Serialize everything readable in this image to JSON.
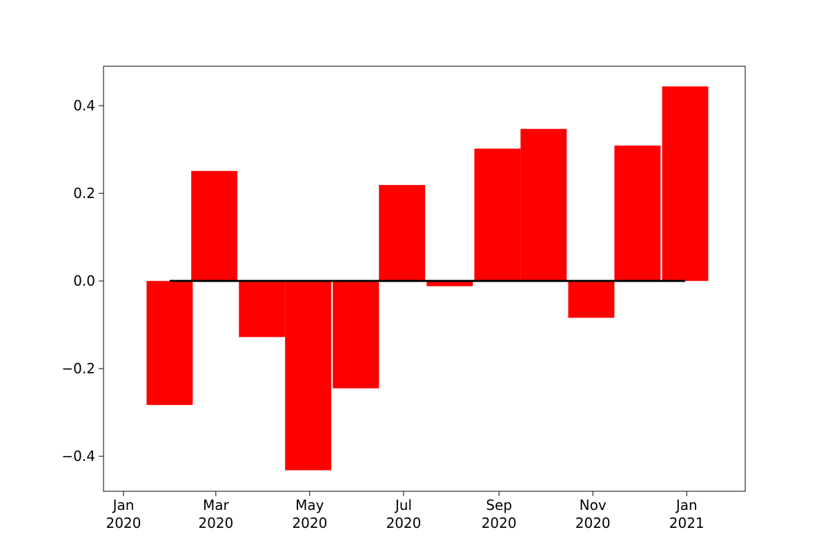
{
  "chart_data": {
    "type": "bar",
    "x_axis": {
      "kind": "date",
      "range": [
        "2019-12-19",
        "2021-02-08"
      ],
      "ticks": [
        {
          "date": "2020-01-01",
          "label_line1": "Jan",
          "label_line2": "2020"
        },
        {
          "date": "2020-03-01",
          "label_line1": "Mar",
          "label_line2": "2020"
        },
        {
          "date": "2020-05-01",
          "label_line1": "May",
          "label_line2": "2020"
        },
        {
          "date": "2020-07-01",
          "label_line1": "Jul",
          "label_line2": "2020"
        },
        {
          "date": "2020-09-01",
          "label_line1": "Sep",
          "label_line2": "2020"
        },
        {
          "date": "2020-11-01",
          "label_line1": "Nov",
          "label_line2": "2020"
        },
        {
          "date": "2021-01-01",
          "label_line1": "Jan",
          "label_line2": "2021"
        }
      ]
    },
    "y_axis": {
      "range": [
        -0.48,
        0.49
      ],
      "ticks": [
        {
          "value": 0.4,
          "label": "0.4"
        },
        {
          "value": 0.2,
          "label": "0.2"
        },
        {
          "value": 0.0,
          "label": "0.0"
        },
        {
          "value": -0.2,
          "label": "−0.2"
        },
        {
          "value": -0.4,
          "label": "−0.4"
        }
      ]
    },
    "bar_color": "#ff0000",
    "bars": [
      {
        "x": "2020-01-31",
        "value": -0.283
      },
      {
        "x": "2020-02-29",
        "value": 0.251
      },
      {
        "x": "2020-03-31",
        "value": -0.128
      },
      {
        "x": "2020-04-30",
        "value": -0.432
      },
      {
        "x": "2020-05-31",
        "value": -0.245
      },
      {
        "x": "2020-06-30",
        "value": 0.219
      },
      {
        "x": "2020-07-31",
        "value": -0.012
      },
      {
        "x": "2020-08-31",
        "value": 0.302
      },
      {
        "x": "2020-09-30",
        "value": 0.347
      },
      {
        "x": "2020-10-31",
        "value": -0.084
      },
      {
        "x": "2020-11-30",
        "value": 0.309
      },
      {
        "x": "2020-12-31",
        "value": 0.444
      }
    ],
    "reference_line": {
      "value": 0.0,
      "from": "2020-01-31",
      "to": "2020-12-31",
      "color": "#000000"
    },
    "grid": false,
    "title": "",
    "xlabel": "",
    "ylabel": ""
  }
}
